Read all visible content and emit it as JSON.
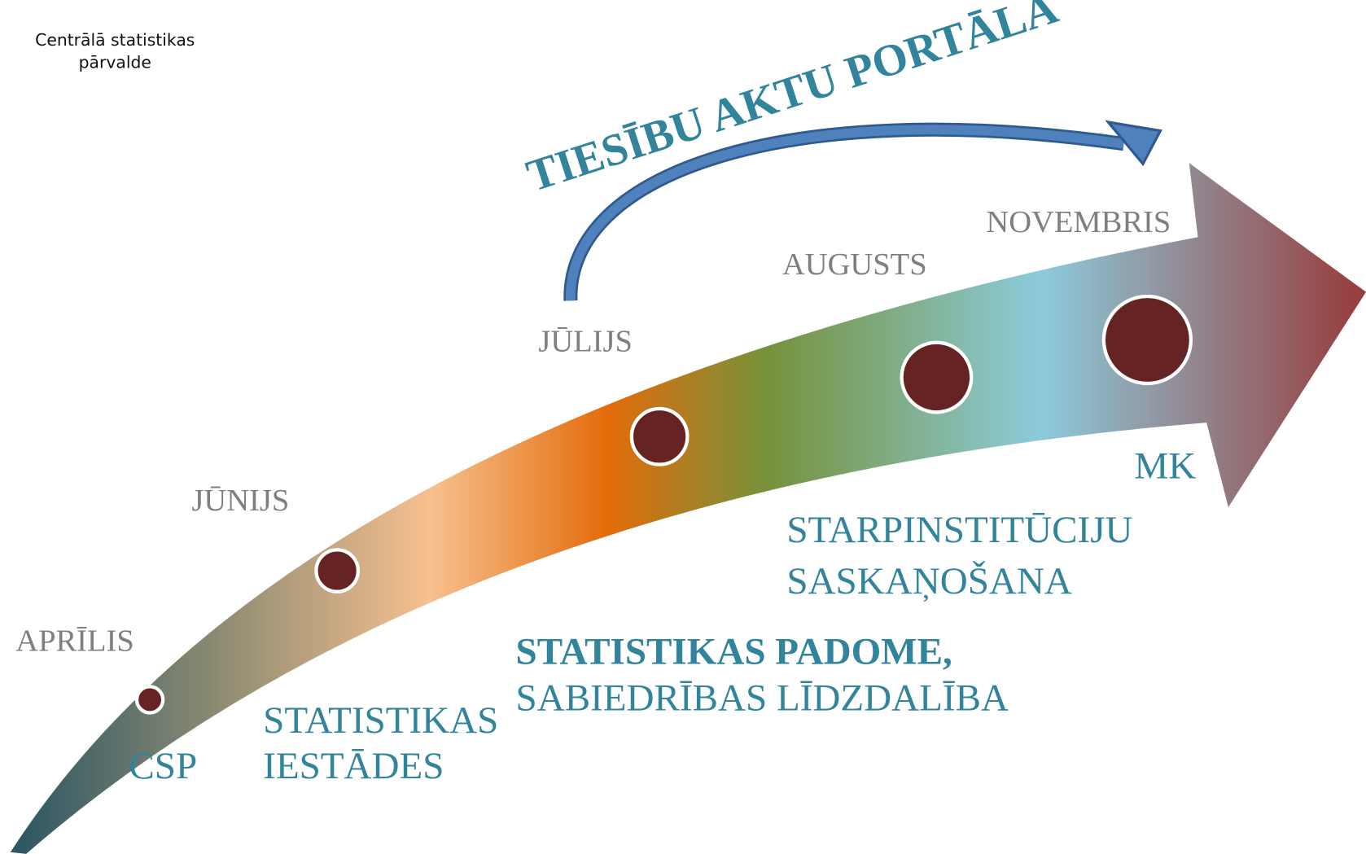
{
  "logo": {
    "lines": [
      "Centrālā statistikas",
      "pārvalde"
    ]
  },
  "portal_label": "TIESĪBU AKTU PORTĀLĀ",
  "steps": [
    {
      "month": "APRĪLIS",
      "stage": [
        "CSP"
      ]
    },
    {
      "month": "JŪNIJS",
      "stage": [
        "STATISTIKAS",
        "IESTĀDES"
      ]
    },
    {
      "month": "JŪLIJS",
      "stage": [
        "STATISTIKAS PADOME,",
        "SABIEDRĪBAS LĪDZDALĪBA"
      ]
    },
    {
      "month": "AUGUSTS",
      "stage": [
        "STARPINSTITŪCIJU",
        "SASKAŅOŠANA"
      ]
    },
    {
      "month": "NOVEMBRIS",
      "stage": [
        "MK"
      ]
    }
  ]
}
